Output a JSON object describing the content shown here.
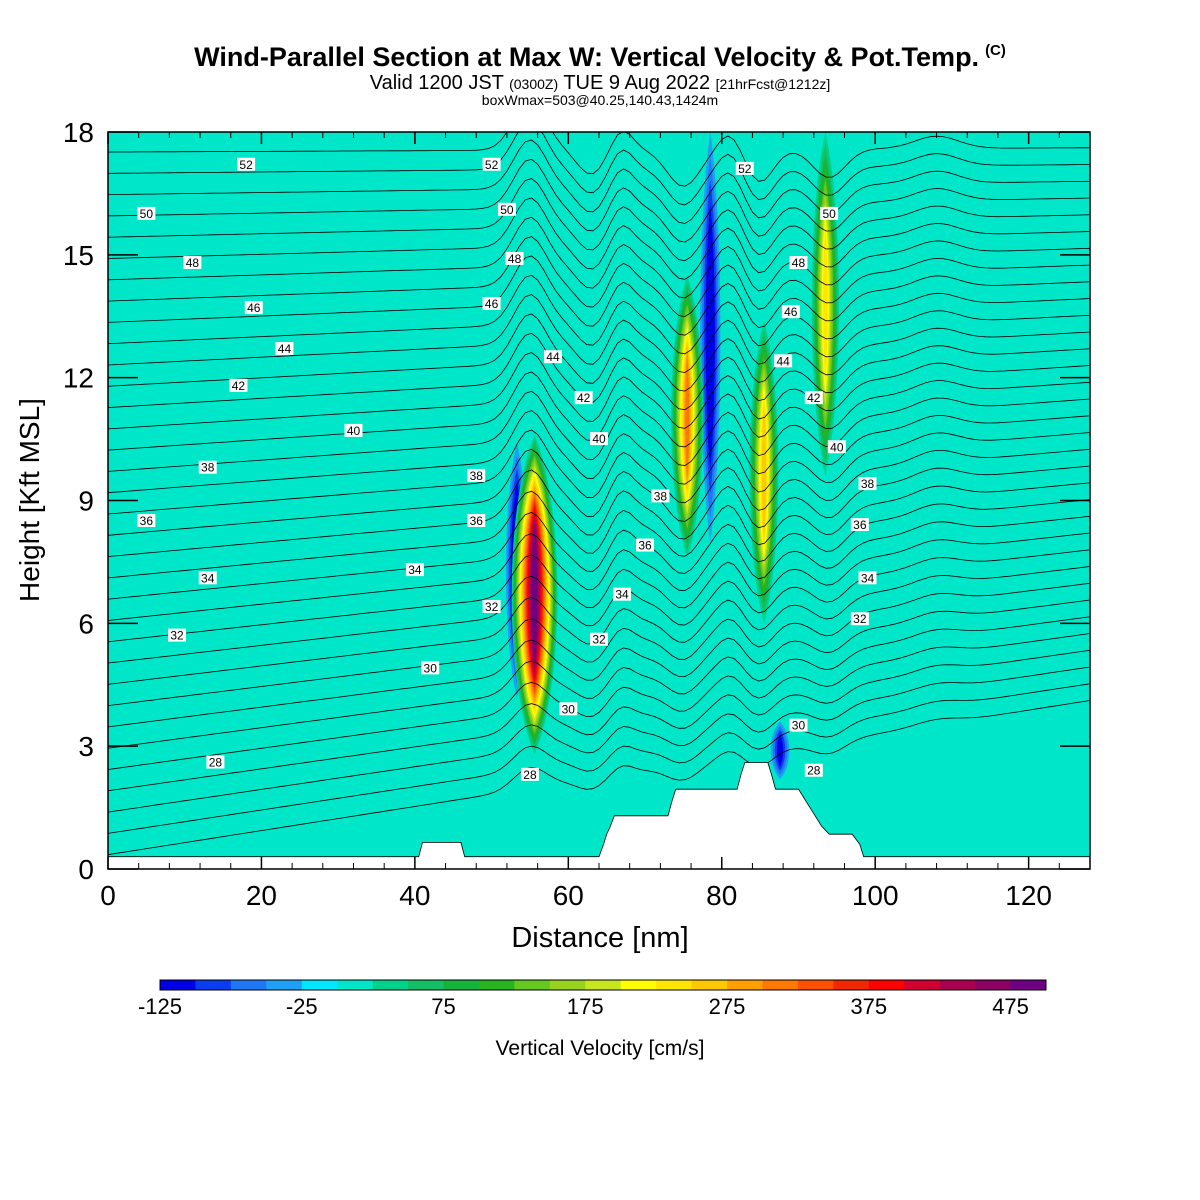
{
  "header": {
    "title": "Wind-Parallel Section at Max W: Vertical Velocity & Pot.Temp.",
    "title_mark": "(C)",
    "valid_a": "Valid 1200 JST ",
    "valid_b": "(0300Z)",
    "valid_c": " TUE 9 Aug 2022 ",
    "valid_d": "[21hrFcst@1212z]",
    "box": "boxWmax=503@40.25,140.43,1424m"
  },
  "chart_data": {
    "type": "contour",
    "xlabel": "Distance [nm]",
    "ylabel": "Height [Kft MSL]",
    "xlim": [
      0,
      128
    ],
    "ylim": [
      0,
      18
    ],
    "xticks": [
      0,
      20,
      40,
      60,
      80,
      100,
      120
    ],
    "yticks": [
      0,
      3,
      6,
      9,
      12,
      15,
      18
    ],
    "colorbar": {
      "label": "Vertical Velocity [cm/s]",
      "min": -125,
      "step": 25,
      "ticks": [
        -125,
        -25,
        75,
        175,
        275,
        375,
        475
      ],
      "colors": [
        "#0000e6",
        "#0a3cf0",
        "#1e78f5",
        "#1ea0f5",
        "#00e6ff",
        "#00e6c8",
        "#00d28c",
        "#14be64",
        "#14b43c",
        "#28b41e",
        "#64c81e",
        "#96d21e",
        "#c8e61e",
        "#ffff00",
        "#ffe600",
        "#ffc800",
        "#ffa000",
        "#ff7800",
        "#ff5000",
        "#f02800",
        "#ff0000",
        "#d20032",
        "#aa0050",
        "#8c0064",
        "#6e0082"
      ]
    },
    "background_band": {
      "color": "#00e6c8",
      "value_range": [
        0,
        25
      ]
    },
    "updrafts": [
      {
        "x": 55.6,
        "y_bottom": 2.8,
        "y_top": 10.6,
        "w_max": 475
      },
      {
        "x": 75.5,
        "y_bottom": 7.6,
        "y_top": 14.5,
        "w_max": 275
      },
      {
        "x": 85.5,
        "y_bottom": 6.0,
        "y_top": 13.4,
        "w_max": 225
      },
      {
        "x": 93.5,
        "y_bottom": 9.6,
        "y_top": 18.0,
        "w_max": 200
      }
    ],
    "downdrafts": [
      {
        "x": 53.3,
        "y_bottom": 4.2,
        "y_top": 10.4,
        "w_min": -125
      },
      {
        "x": 78.5,
        "y_bottom": 8.0,
        "y_top": 18.0,
        "w_min": -100
      },
      {
        "x": 87.6,
        "y_bottom": 2.2,
        "y_top": 3.6,
        "w_min": -75
      }
    ],
    "theta_contours": {
      "levels": [
        28,
        30,
        32,
        34,
        36,
        38,
        40,
        42,
        44,
        46,
        48,
        50,
        52
      ],
      "labels": [
        {
          "text": "28",
          "x": 14,
          "y": 2.6
        },
        {
          "text": "28",
          "x": 55,
          "y": 2.3
        },
        {
          "text": "28",
          "x": 92,
          "y": 2.4
        },
        {
          "text": "30",
          "x": 42,
          "y": 4.9
        },
        {
          "text": "30",
          "x": 60,
          "y": 3.9
        },
        {
          "text": "30",
          "x": 90,
          "y": 3.5
        },
        {
          "text": "32",
          "x": 9,
          "y": 5.7
        },
        {
          "text": "32",
          "x": 50,
          "y": 6.4
        },
        {
          "text": "32",
          "x": 64,
          "y": 5.6
        },
        {
          "text": "32",
          "x": 98,
          "y": 6.1
        },
        {
          "text": "34",
          "x": 13,
          "y": 7.1
        },
        {
          "text": "34",
          "x": 40,
          "y": 7.3
        },
        {
          "text": "34",
          "x": 67,
          "y": 6.7
        },
        {
          "text": "34",
          "x": 99,
          "y": 7.1
        },
        {
          "text": "36",
          "x": 5,
          "y": 8.5
        },
        {
          "text": "36",
          "x": 48,
          "y": 8.5
        },
        {
          "text": "36",
          "x": 70,
          "y": 7.9
        },
        {
          "text": "36",
          "x": 98,
          "y": 8.4
        },
        {
          "text": "38",
          "x": 13,
          "y": 9.8
        },
        {
          "text": "38",
          "x": 48,
          "y": 9.6
        },
        {
          "text": "38",
          "x": 72,
          "y": 9.1
        },
        {
          "text": "38",
          "x": 99,
          "y": 9.4
        },
        {
          "text": "40",
          "x": 32,
          "y": 10.7
        },
        {
          "text": "40",
          "x": 64,
          "y": 10.5
        },
        {
          "text": "40",
          "x": 95,
          "y": 10.3
        },
        {
          "text": "42",
          "x": 17,
          "y": 11.8
        },
        {
          "text": "42",
          "x": 62,
          "y": 11.5
        },
        {
          "text": "42",
          "x": 92,
          "y": 11.5
        },
        {
          "text": "44",
          "x": 23,
          "y": 12.7
        },
        {
          "text": "44",
          "x": 58,
          "y": 12.5
        },
        {
          "text": "44",
          "x": 88,
          "y": 12.4
        },
        {
          "text": "46",
          "x": 19,
          "y": 13.7
        },
        {
          "text": "46",
          "x": 50,
          "y": 13.8
        },
        {
          "text": "46",
          "x": 89,
          "y": 13.6
        },
        {
          "text": "48",
          "x": 11,
          "y": 14.8
        },
        {
          "text": "48",
          "x": 53,
          "y": 14.9
        },
        {
          "text": "48",
          "x": 90,
          "y": 14.8
        },
        {
          "text": "50",
          "x": 5,
          "y": 16.0
        },
        {
          "text": "50",
          "x": 52,
          "y": 16.1
        },
        {
          "text": "50",
          "x": 94,
          "y": 16.0
        },
        {
          "text": "52",
          "x": 18,
          "y": 17.2
        },
        {
          "text": "52",
          "x": 50,
          "y": 17.2
        },
        {
          "text": "52",
          "x": 83,
          "y": 17.1
        }
      ]
    },
    "terrain": [
      [
        0,
        0.3
      ],
      [
        40.5,
        0.3
      ],
      [
        41,
        0.65
      ],
      [
        46,
        0.65
      ],
      [
        46.5,
        0.3
      ],
      [
        64,
        0.3
      ],
      [
        64.5,
        0.55
      ],
      [
        65,
        0.85
      ],
      [
        65.5,
        1.05
      ],
      [
        66,
        1.3
      ],
      [
        73,
        1.3
      ],
      [
        73.5,
        1.65
      ],
      [
        74,
        1.95
      ],
      [
        82,
        1.95
      ],
      [
        82.5,
        2.3
      ],
      [
        83,
        2.6
      ],
      [
        86,
        2.6
      ],
      [
        86.5,
        2.3
      ],
      [
        87,
        1.95
      ],
      [
        90,
        1.95
      ],
      [
        91,
        1.65
      ],
      [
        92,
        1.35
      ],
      [
        93,
        1.05
      ],
      [
        94,
        0.85
      ],
      [
        97,
        0.85
      ],
      [
        98,
        0.6
      ],
      [
        98.5,
        0.3
      ],
      [
        128,
        0.3
      ]
    ]
  }
}
